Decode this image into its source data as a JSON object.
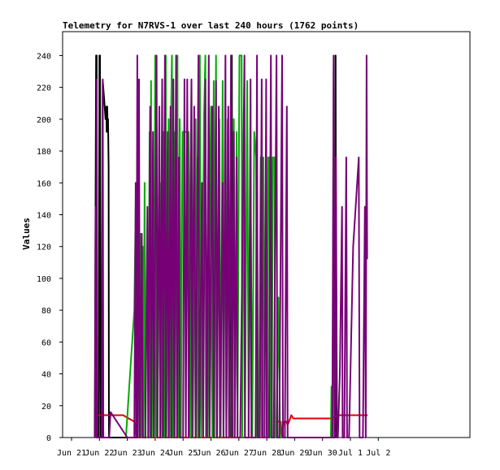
{
  "chart_data": {
    "type": "line",
    "title": "Telemetry for N7RVS-1 over last 240 hours (1762 points)",
    "xlabel": "",
    "ylabel": "Values",
    "ylim": [
      0,
      255
    ],
    "yticks": [
      0,
      20,
      40,
      60,
      80,
      100,
      120,
      140,
      160,
      180,
      200,
      220,
      240
    ],
    "x_unit": "days since Jun 21 00:00",
    "xlim": [
      0,
      10.8
    ],
    "xticks": [
      {
        "x": 0,
        "label": "Jun 21"
      },
      {
        "x": 1,
        "label": "Jun 22"
      },
      {
        "x": 2,
        "label": "Jun 23"
      },
      {
        "x": 3,
        "label": "Jun 24"
      },
      {
        "x": 4,
        "label": "Jun 25"
      },
      {
        "x": 5,
        "label": "Jun 26"
      },
      {
        "x": 6,
        "label": "Jun 27"
      },
      {
        "x": 7,
        "label": "Jun 28"
      },
      {
        "x": 8,
        "label": "Jun 29"
      },
      {
        "x": 9,
        "label": "Jun 30"
      },
      {
        "x": 10,
        "label": "Jul 1"
      },
      {
        "x": 11,
        "label": "Jul 2"
      }
    ],
    "grid": false,
    "legend": "none",
    "series": [
      {
        "color": "#000000",
        "points": [
          [
            0.83,
            0
          ],
          [
            0.88,
            240
          ],
          [
            0.9,
            240
          ],
          [
            0.92,
            0
          ],
          [
            0.98,
            0
          ],
          [
            1.0,
            240
          ],
          [
            1.02,
            240
          ],
          [
            1.05,
            0
          ],
          [
            1.1,
            0
          ],
          [
            1.12,
            224
          ],
          [
            1.18,
            210
          ],
          [
            1.22,
            200
          ],
          [
            1.25,
            208
          ],
          [
            1.26,
            192
          ],
          [
            1.28,
            208
          ],
          [
            1.29,
            200
          ],
          [
            1.31,
            200
          ],
          [
            1.33,
            170
          ],
          [
            1.34,
            0
          ],
          [
            1.6,
            0
          ],
          [
            5.72,
            0
          ],
          [
            5.75,
            240
          ],
          [
            5.77,
            0
          ],
          [
            9.45,
            0
          ],
          [
            9.47,
            240
          ],
          [
            9.49,
            0
          ]
        ]
      },
      {
        "color": "#dd0000",
        "points": [
          [
            0.82,
            14
          ],
          [
            1.3,
            14
          ],
          [
            1.85,
            14
          ],
          [
            2.05,
            12
          ],
          [
            2.25,
            10
          ],
          [
            2.32,
            0
          ],
          [
            2.34,
            0
          ],
          [
            7.28,
            0
          ],
          [
            7.32,
            10
          ],
          [
            7.5,
            10
          ],
          [
            7.55,
            0
          ],
          [
            7.6,
            10
          ],
          [
            7.7,
            10
          ],
          [
            7.75,
            8
          ],
          [
            7.8,
            10
          ],
          [
            7.88,
            14
          ],
          [
            7.95,
            12
          ],
          [
            9.0,
            12
          ],
          [
            9.3,
            12
          ],
          [
            9.55,
            14
          ],
          [
            10.62,
            14
          ]
        ]
      },
      {
        "color": "#00aa00",
        "points": [
          [
            1.95,
            0
          ],
          [
            2.1,
            40
          ],
          [
            2.25,
            80
          ],
          [
            2.3,
            145
          ],
          [
            2.32,
            0
          ],
          [
            2.34,
            160
          ],
          [
            2.38,
            0
          ],
          [
            2.4,
            180
          ],
          [
            2.45,
            0
          ],
          [
            2.48,
            128
          ],
          [
            2.5,
            0
          ],
          [
            2.55,
            120
          ],
          [
            2.58,
            0
          ],
          [
            2.62,
            160
          ],
          [
            2.65,
            0
          ],
          [
            2.75,
            0
          ],
          [
            2.8,
            192
          ],
          [
            2.82,
            0
          ],
          [
            2.85,
            224
          ],
          [
            2.88,
            0
          ],
          [
            2.92,
            160
          ],
          [
            2.95,
            0
          ],
          [
            3.0,
            240
          ],
          [
            3.02,
            0
          ],
          [
            3.05,
            208
          ],
          [
            3.08,
            0
          ],
          [
            3.15,
            200
          ],
          [
            3.18,
            0
          ],
          [
            3.22,
            160
          ],
          [
            3.25,
            0
          ],
          [
            3.3,
            192
          ],
          [
            3.32,
            0
          ],
          [
            3.38,
            240
          ],
          [
            3.4,
            0
          ],
          [
            3.48,
            200
          ],
          [
            3.52,
            0
          ],
          [
            3.55,
            180
          ],
          [
            3.6,
            240
          ],
          [
            3.62,
            0
          ],
          [
            3.68,
            192
          ],
          [
            3.7,
            0
          ],
          [
            3.75,
            224
          ],
          [
            3.8,
            240
          ],
          [
            3.82,
            0
          ],
          [
            3.88,
            200
          ],
          [
            3.92,
            0
          ],
          [
            3.98,
            192
          ],
          [
            4.2,
            192
          ],
          [
            4.25,
            0
          ],
          [
            4.3,
            224
          ],
          [
            4.35,
            0
          ],
          [
            4.45,
            200
          ],
          [
            4.48,
            0
          ],
          [
            4.52,
            176
          ],
          [
            4.55,
            0
          ],
          [
            4.6,
            240
          ],
          [
            4.65,
            0
          ],
          [
            4.75,
            200
          ],
          [
            4.8,
            240
          ],
          [
            4.82,
            0
          ],
          [
            4.88,
            0
          ],
          [
            5.0,
            208
          ],
          [
            5.05,
            0
          ],
          [
            5.1,
            224
          ],
          [
            5.12,
            0
          ],
          [
            5.18,
            240
          ],
          [
            5.2,
            0
          ],
          [
            5.3,
            200
          ],
          [
            5.35,
            0
          ],
          [
            5.42,
            224
          ],
          [
            5.45,
            0
          ],
          [
            5.52,
            192
          ],
          [
            5.55,
            0
          ],
          [
            5.6,
            200
          ],
          [
            5.65,
            0
          ],
          [
            5.72,
            240
          ],
          [
            5.75,
            0
          ],
          [
            5.82,
            200
          ],
          [
            5.85,
            0
          ],
          [
            5.92,
            192
          ],
          [
            5.95,
            0
          ],
          [
            6.02,
            240
          ],
          [
            6.1,
            240
          ],
          [
            6.12,
            0
          ],
          [
            6.18,
            208
          ],
          [
            6.22,
            0
          ],
          [
            6.3,
            224
          ],
          [
            6.35,
            0
          ],
          [
            6.42,
            160
          ],
          [
            6.48,
            0
          ],
          [
            6.55,
            192
          ],
          [
            6.62,
            176
          ],
          [
            6.65,
            0
          ],
          [
            6.72,
            0
          ],
          [
            6.78,
            176
          ],
          [
            6.82,
            0
          ],
          [
            6.88,
            176
          ],
          [
            6.92,
            0
          ],
          [
            7.02,
            0
          ],
          [
            7.05,
            176
          ],
          [
            7.1,
            176
          ],
          [
            7.12,
            0
          ],
          [
            7.18,
            0
          ],
          [
            7.22,
            176
          ],
          [
            7.28,
            176
          ],
          [
            7.3,
            0
          ],
          [
            7.35,
            0
          ],
          [
            7.42,
            88
          ],
          [
            7.48,
            0
          ],
          [
            9.3,
            0
          ],
          [
            9.32,
            32
          ],
          [
            9.36,
            0
          ],
          [
            9.4,
            240
          ],
          [
            9.43,
            0
          ],
          [
            9.48,
            145
          ],
          [
            9.52,
            0
          ]
        ]
      },
      {
        "color": "#770077",
        "points": [
          [
            0.84,
            0
          ],
          [
            0.86,
            145
          ],
          [
            0.88,
            0
          ],
          [
            0.9,
            225
          ],
          [
            0.92,
            0
          ],
          [
            1.08,
            0
          ],
          [
            1.12,
            225
          ],
          [
            1.14,
            0
          ],
          [
            1.35,
            0
          ],
          [
            1.4,
            16
          ],
          [
            2.0,
            0
          ],
          [
            2.25,
            0
          ],
          [
            2.3,
            160
          ],
          [
            2.32,
            0
          ],
          [
            2.36,
            240
          ],
          [
            2.38,
            0
          ],
          [
            2.42,
            225
          ],
          [
            2.45,
            0
          ],
          [
            2.52,
            128
          ],
          [
            2.55,
            0
          ],
          [
            2.65,
            0
          ],
          [
            2.72,
            145
          ],
          [
            2.75,
            0
          ],
          [
            2.82,
            208
          ],
          [
            2.85,
            0
          ],
          [
            2.92,
            192
          ],
          [
            2.95,
            0
          ],
          [
            3.05,
            240
          ],
          [
            3.08,
            0
          ],
          [
            3.15,
            208
          ],
          [
            3.18,
            0
          ],
          [
            3.25,
            225
          ],
          [
            3.28,
            0
          ],
          [
            3.35,
            240
          ],
          [
            3.38,
            0
          ],
          [
            3.45,
            192
          ],
          [
            3.48,
            0
          ],
          [
            3.55,
            208
          ],
          [
            3.58,
            0
          ],
          [
            3.65,
            225
          ],
          [
            3.68,
            0
          ],
          [
            3.75,
            240
          ],
          [
            3.78,
            0
          ],
          [
            3.85,
            176
          ],
          [
            3.88,
            0
          ],
          [
            4.0,
            0
          ],
          [
            4.05,
            225
          ],
          [
            4.1,
            0
          ],
          [
            4.15,
            225
          ],
          [
            4.2,
            0
          ],
          [
            4.3,
            225
          ],
          [
            4.32,
            0
          ],
          [
            4.4,
            208
          ],
          [
            4.45,
            0
          ],
          [
            4.55,
            240
          ],
          [
            4.58,
            0
          ],
          [
            4.68,
            160
          ],
          [
            4.72,
            0
          ],
          [
            4.8,
            225
          ],
          [
            4.85,
            0
          ],
          [
            4.92,
            240
          ],
          [
            4.95,
            0
          ],
          [
            5.05,
            208
          ],
          [
            5.1,
            0
          ],
          [
            5.18,
            224
          ],
          [
            5.22,
            0
          ],
          [
            5.28,
            208
          ],
          [
            5.32,
            0
          ],
          [
            5.42,
            160
          ],
          [
            5.45,
            0
          ],
          [
            5.52,
            240
          ],
          [
            5.55,
            0
          ],
          [
            5.62,
            208
          ],
          [
            5.65,
            0
          ],
          [
            5.72,
            240
          ],
          [
            5.75,
            0
          ],
          [
            5.82,
            192
          ],
          [
            5.85,
            0
          ],
          [
            5.92,
            176
          ],
          [
            5.95,
            0
          ],
          [
            6.05,
            0
          ],
          [
            6.2,
            240
          ],
          [
            6.22,
            0
          ],
          [
            6.35,
            0
          ],
          [
            6.42,
            225
          ],
          [
            6.45,
            0
          ],
          [
            6.6,
            0
          ],
          [
            6.65,
            240
          ],
          [
            6.68,
            0
          ],
          [
            6.75,
            0
          ],
          [
            6.82,
            225
          ],
          [
            6.85,
            0
          ],
          [
            6.92,
            0
          ],
          [
            6.98,
            225
          ],
          [
            7.0,
            0
          ],
          [
            7.08,
            0
          ],
          [
            7.15,
            240
          ],
          [
            7.18,
            0
          ],
          [
            7.25,
            0
          ],
          [
            7.35,
            240
          ],
          [
            7.38,
            0
          ],
          [
            7.45,
            0
          ],
          [
            7.55,
            240
          ],
          [
            7.58,
            0
          ],
          [
            7.65,
            0
          ],
          [
            7.72,
            208
          ],
          [
            7.75,
            0
          ],
          [
            9.35,
            0
          ],
          [
            9.4,
            240
          ],
          [
            9.43,
            0
          ],
          [
            9.48,
            176
          ],
          [
            9.52,
            0
          ],
          [
            9.55,
            0
          ],
          [
            9.62,
            40
          ],
          [
            9.7,
            145
          ],
          [
            9.72,
            0
          ],
          [
            9.78,
            0
          ],
          [
            9.85,
            176
          ],
          [
            9.88,
            0
          ],
          [
            9.95,
            0
          ],
          [
            10.1,
            120
          ],
          [
            10.3,
            176
          ],
          [
            10.33,
            0
          ],
          [
            10.45,
            0
          ],
          [
            10.52,
            145
          ],
          [
            10.55,
            0
          ],
          [
            10.58,
            240
          ],
          [
            10.6,
            112
          ]
        ]
      }
    ]
  }
}
